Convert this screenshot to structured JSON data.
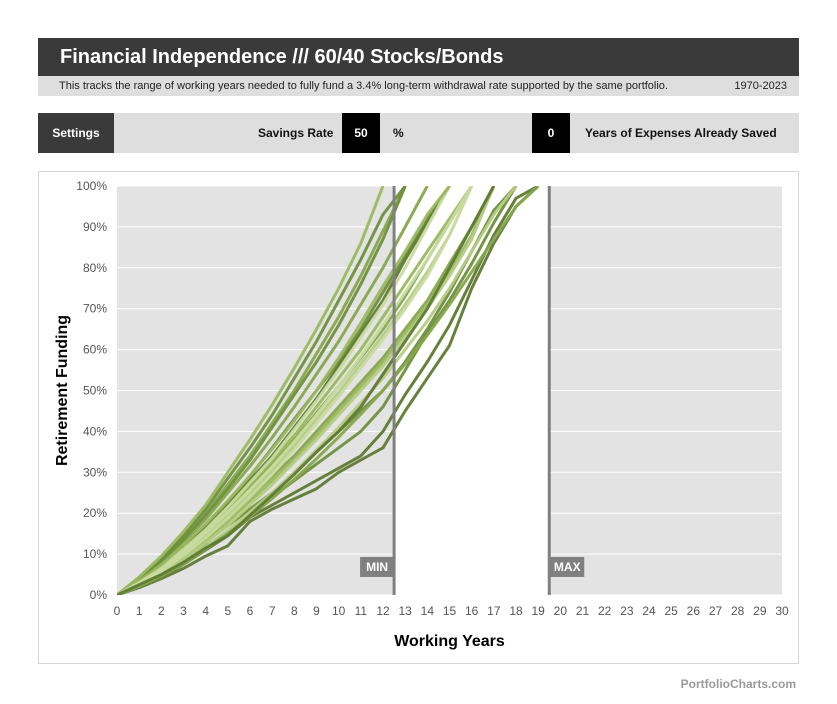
{
  "header": {
    "title": "Financial Independence /// 60/40 Stocks/Bonds",
    "description": "This tracks the range of working years needed to fully fund a 3.4% long-term withdrawal rate supported by the same portfolio.",
    "date_range": "1970-2023"
  },
  "settings": {
    "label": "Settings",
    "savings_rate_label": "Savings Rate",
    "savings_rate_value": "50",
    "savings_rate_unit": "%",
    "years_saved_value": "0",
    "years_saved_label": "Years of Expenses Already Saved"
  },
  "footer": {
    "source": "PortfolioCharts.com"
  },
  "colors": {
    "plot_bg": "#e3e3e3",
    "window_bg": "#ffffff",
    "marker": "#808080",
    "series_palette": [
      "#5f7a33",
      "#6f8f3d",
      "#86a64c",
      "#9ab85f",
      "#b4cc83",
      "#c8dba0"
    ]
  },
  "chart_data": {
    "type": "line",
    "title": "",
    "xlabel": "Working Years",
    "ylabel": "Retirement Funding",
    "xlim": [
      0,
      30
    ],
    "ylim": [
      0,
      100
    ],
    "x_ticks": [
      "0",
      "1",
      "2",
      "3",
      "4",
      "5",
      "6",
      "7",
      "8",
      "9",
      "10",
      "11",
      "12",
      "13",
      "14",
      "15",
      "16",
      "17",
      "18",
      "19",
      "20",
      "21",
      "22",
      "23",
      "24",
      "25",
      "26",
      "27",
      "28",
      "29",
      "30"
    ],
    "y_ticks": [
      "0%",
      "10%",
      "20%",
      "30%",
      "40%",
      "50%",
      "60%",
      "70%",
      "80%",
      "90%",
      "100%"
    ],
    "grid": true,
    "markers": [
      {
        "label": "MIN",
        "x": 12.5
      },
      {
        "label": "MAX",
        "x": 19.5
      }
    ],
    "series": [
      {
        "color": "#5f7a33",
        "x": [
          0,
          1,
          2,
          3,
          4,
          5,
          6,
          7,
          8,
          9,
          10,
          11,
          12,
          13,
          14,
          15,
          16,
          17,
          18,
          19
        ],
        "y": [
          0,
          1.8,
          4,
          6.5,
          9.5,
          12,
          18,
          21,
          23.5,
          26,
          30,
          33,
          36,
          45,
          53,
          61,
          75,
          86,
          95,
          100
        ]
      },
      {
        "color": "#5f7a33",
        "x": [
          0,
          1,
          2,
          3,
          4,
          5,
          6,
          7,
          8,
          9,
          10,
          11,
          12,
          13,
          14,
          15,
          16,
          17,
          18,
          19
        ],
        "y": [
          0,
          2,
          4.5,
          7.5,
          11,
          14.5,
          19,
          22,
          25,
          28,
          31,
          34,
          40,
          49,
          57,
          66,
          77,
          88,
          97,
          100
        ]
      },
      {
        "color": "#6f8f3d",
        "x": [
          0,
          1,
          2,
          3,
          4,
          5,
          6,
          7,
          8,
          9,
          10,
          11,
          12,
          13,
          14,
          15,
          16,
          17,
          18
        ],
        "y": [
          0,
          2.2,
          5,
          8,
          12,
          15,
          19,
          24,
          28,
          32,
          36,
          40,
          46,
          55,
          64,
          72,
          81,
          91,
          100
        ]
      },
      {
        "color": "#6f8f3d",
        "x": [
          0,
          1,
          2,
          3,
          4,
          5,
          6,
          7,
          8,
          9,
          10,
          11,
          12,
          13,
          14,
          15,
          16,
          17,
          18
        ],
        "y": [
          0,
          2.5,
          5.5,
          9,
          13,
          17,
          21,
          25,
          30,
          35,
          40,
          45,
          50,
          57,
          65,
          74,
          84,
          94,
          100
        ]
      },
      {
        "color": "#86a64c",
        "x": [
          0,
          1,
          2,
          3,
          4,
          5,
          6,
          7,
          8,
          9,
          10,
          11,
          12,
          13,
          14,
          15,
          16,
          17
        ],
        "y": [
          0,
          2.8,
          6,
          10,
          14,
          19,
          24,
          29,
          34,
          40,
          46,
          52,
          58,
          65,
          72,
          81,
          90,
          100
        ]
      },
      {
        "color": "#86a64c",
        "x": [
          0,
          1,
          2,
          3,
          4,
          5,
          6,
          7,
          8,
          9,
          10,
          11,
          12,
          13,
          14,
          15,
          16
        ],
        "y": [
          0,
          3,
          6.5,
          11,
          15.5,
          21,
          26.5,
          32,
          38,
          44.5,
          51,
          58,
          65,
          73,
          82,
          91,
          100
        ]
      },
      {
        "color": "#9ab85f",
        "x": [
          0,
          1,
          2,
          3,
          4,
          5,
          6,
          7,
          8,
          9,
          10,
          11,
          12,
          13,
          14,
          15,
          16,
          17
        ],
        "y": [
          0,
          2.6,
          5.5,
          9.5,
          13.5,
          18,
          23,
          28,
          33,
          39,
          45,
          51,
          57,
          64,
          71,
          79,
          88,
          100
        ]
      },
      {
        "color": "#9ab85f",
        "x": [
          0,
          1,
          2,
          3,
          4,
          5,
          6,
          7,
          8,
          9,
          10,
          11,
          12,
          13,
          14,
          15,
          16
        ],
        "y": [
          0,
          3.2,
          7,
          11.5,
          16,
          21,
          27,
          33,
          39,
          46,
          53,
          60,
          68,
          76,
          84,
          92,
          100
        ]
      },
      {
        "color": "#6f8f3d",
        "x": [
          0,
          1,
          2,
          3,
          4,
          5,
          6,
          7,
          8,
          9,
          10,
          11,
          12,
          13,
          14,
          15
        ],
        "y": [
          0,
          3.5,
          7.5,
          12,
          17,
          23,
          29,
          36,
          43,
          50,
          57,
          65,
          74,
          83,
          92,
          100
        ]
      },
      {
        "color": "#5f7a33",
        "x": [
          0,
          1,
          2,
          3,
          4,
          5,
          6,
          7,
          8,
          9,
          10,
          11,
          12,
          13,
          14,
          15
        ],
        "y": [
          0,
          3.3,
          7.2,
          11.8,
          16.5,
          22,
          28,
          34,
          41,
          48,
          56,
          64,
          72,
          82,
          91,
          100
        ]
      },
      {
        "color": "#86a64c",
        "x": [
          0,
          1,
          2,
          3,
          4,
          5,
          6,
          7,
          8,
          9,
          10,
          11,
          12,
          13,
          14
        ],
        "y": [
          0,
          3.8,
          8,
          13,
          18.5,
          25,
          31.5,
          38.5,
          46,
          54,
          62,
          71,
          80,
          90,
          100
        ]
      },
      {
        "color": "#86a64c",
        "x": [
          0,
          1,
          2,
          3,
          4,
          5,
          6,
          7,
          8,
          9,
          10,
          11,
          12,
          13
        ],
        "y": [
          0,
          4,
          8.5,
          14,
          20,
          27,
          34,
          42,
          50,
          59,
          68,
          78,
          89,
          100
        ]
      },
      {
        "color": "#6f8f3d",
        "x": [
          0,
          1,
          2,
          3,
          4,
          5,
          6,
          7,
          8,
          9,
          10,
          11,
          12,
          13
        ],
        "y": [
          0,
          3.9,
          8.3,
          13.5,
          19.5,
          26,
          33,
          41,
          49,
          57,
          66,
          76,
          87,
          100
        ]
      },
      {
        "color": "#6f8f3d",
        "x": [
          0,
          1,
          2,
          3,
          4,
          5,
          6,
          7,
          8,
          9,
          10,
          11,
          12,
          13
        ],
        "y": [
          0,
          4.2,
          8.8,
          14.5,
          21,
          28.5,
          36,
          44,
          53,
          62,
          72,
          82,
          93,
          100
        ]
      },
      {
        "color": "#9ab85f",
        "x": [
          0,
          1,
          2,
          3,
          4,
          5,
          6,
          7,
          8,
          9,
          10,
          11,
          12
        ],
        "y": [
          0,
          4.4,
          9.5,
          15.5,
          22,
          30,
          38,
          46.5,
          55.5,
          65,
          75,
          86,
          100
        ]
      },
      {
        "color": "#b4cc83",
        "x": [
          0,
          1,
          2,
          3,
          4,
          5,
          6,
          7,
          8,
          9,
          10,
          11,
          12,
          13,
          14,
          15,
          16,
          17
        ],
        "y": [
          0,
          2.4,
          5.2,
          8.8,
          12.8,
          17,
          22,
          27,
          32.5,
          38,
          44,
          50,
          56,
          63,
          70,
          78,
          87,
          100
        ]
      },
      {
        "color": "#b4cc83",
        "x": [
          0,
          1,
          2,
          3,
          4,
          5,
          6,
          7,
          8,
          9,
          10,
          11,
          12,
          13,
          14,
          15,
          16
        ],
        "y": [
          0,
          2.9,
          6.2,
          10.3,
          14.8,
          19.8,
          25,
          30.5,
          36.5,
          43,
          49.5,
          56.5,
          63.5,
          71,
          79,
          88,
          100
        ]
      },
      {
        "color": "#c8dba0",
        "x": [
          0,
          1,
          2,
          3,
          4,
          5,
          6,
          7,
          8,
          9,
          10,
          11,
          12,
          13,
          14,
          15,
          16
        ],
        "y": [
          0,
          2.7,
          5.8,
          9.7,
          14,
          18.8,
          24,
          29.5,
          35.5,
          42,
          48.5,
          55.5,
          62.5,
          70,
          78,
          88,
          100
        ]
      },
      {
        "color": "#c8dba0",
        "x": [
          0,
          1,
          2,
          3,
          4,
          5,
          6,
          7,
          8,
          9,
          10,
          11,
          12,
          13,
          14,
          15
        ],
        "y": [
          0,
          3.1,
          6.8,
          11.2,
          16,
          21.5,
          27.5,
          33.5,
          40.5,
          47.5,
          55,
          63,
          71,
          80,
          90,
          100
        ]
      },
      {
        "color": "#b4cc83",
        "x": [
          0,
          1,
          2,
          3,
          4,
          5,
          6,
          7,
          8,
          9,
          10,
          11,
          12,
          13,
          14,
          15,
          16,
          17,
          18
        ],
        "y": [
          0,
          2.3,
          4.9,
          8.1,
          11.8,
          15.8,
          20.3,
          25,
          30,
          35.5,
          41,
          47,
          53,
          60,
          67,
          75,
          84,
          93,
          100
        ]
      },
      {
        "color": "#9ab85f",
        "x": [
          0,
          1,
          2,
          3,
          4,
          5,
          6,
          7,
          8,
          9,
          10,
          11,
          12,
          13,
          14,
          15
        ],
        "y": [
          0,
          3.4,
          7.4,
          12.2,
          17.3,
          23,
          29.2,
          35.7,
          42.6,
          50,
          58,
          66.5,
          75.5,
          84,
          93,
          100
        ]
      },
      {
        "color": "#86a64c",
        "x": [
          0,
          1,
          2,
          3,
          4,
          5,
          6,
          7,
          8,
          9,
          10,
          11,
          12,
          13,
          14,
          15,
          16,
          17,
          18,
          19
        ],
        "y": [
          0,
          2.1,
          4.6,
          7.6,
          11.2,
          15,
          19.2,
          23.6,
          28.3,
          33.3,
          38.6,
          44.2,
          50,
          56.5,
          63.5,
          71,
          79,
          87,
          95,
          100
        ]
      },
      {
        "color": "#c8dba0",
        "x": [
          0,
          1,
          2,
          3,
          4,
          5,
          6,
          7,
          8,
          9,
          10,
          11,
          12,
          13,
          14,
          15,
          16
        ],
        "y": [
          0,
          3,
          6.4,
          10.6,
          15.2,
          20.3,
          25.7,
          31.4,
          37.5,
          44,
          51,
          58.3,
          66,
          74,
          82,
          91,
          100
        ]
      },
      {
        "color": "#5f7a33",
        "x": [
          0,
          1,
          2,
          3,
          4,
          5,
          6,
          7,
          8,
          9,
          10,
          11,
          12,
          13,
          14,
          15,
          16,
          17
        ],
        "y": [
          0,
          2.5,
          5,
          8,
          11.5,
          14.5,
          19.5,
          24.5,
          29.5,
          35,
          40,
          46,
          54,
          62,
          70,
          80,
          90,
          100
        ]
      }
    ]
  }
}
